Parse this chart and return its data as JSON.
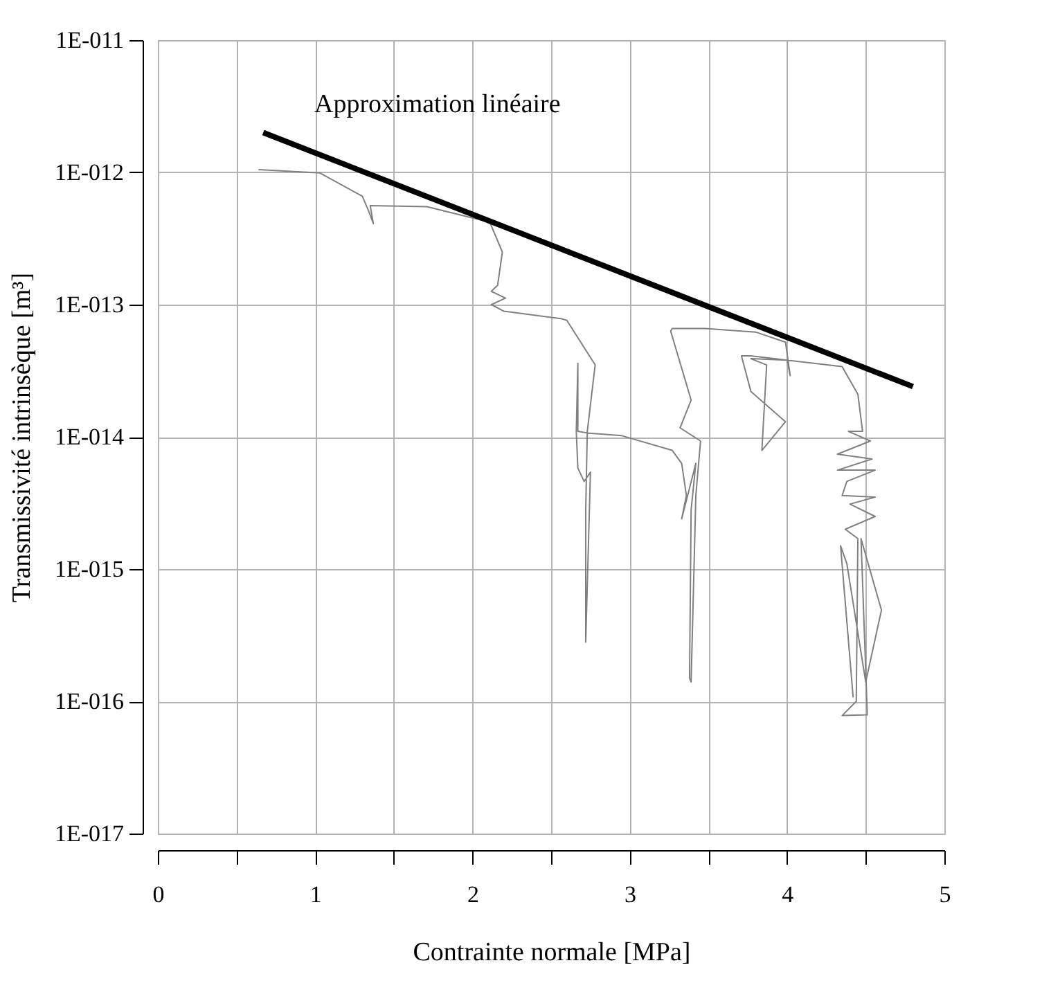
{
  "chart_data": {
    "type": "line",
    "xlabel": "Contrainte normale  [MPa]",
    "ylabel": "Transmissivité intrinsèque [m³]",
    "log": "y",
    "grid": true,
    "xlim": [
      0,
      5
    ],
    "ylim": [
      1e-17,
      1e-11
    ],
    "xticks": [
      0,
      {
        "value": 0.5,
        "label": null
      },
      1,
      {
        "value": 1.5,
        "label": null
      },
      2,
      {
        "value": 2.5,
        "label": null
      },
      3,
      {
        "value": 3.5,
        "label": null
      },
      4,
      {
        "value": 4.5,
        "label": null
      },
      5
    ],
    "yticks": [
      {
        "value": 1e-17,
        "label": "1E-017"
      },
      {
        "value": 1e-16,
        "label": "1E-016"
      },
      {
        "value": 1e-15,
        "label": "1E-015"
      },
      {
        "value": 1e-14,
        "label": "1E-014"
      },
      {
        "value": 1e-13,
        "label": "1E-013"
      },
      {
        "value": 1e-12,
        "label": "1E-012"
      },
      {
        "value": 1e-11,
        "label": "1E-011"
      }
    ],
    "annotations": [
      "Approximation linéaire"
    ],
    "series": [
      {
        "color": "#808080",
        "x": [
          0.64,
          1.03,
          1.3,
          1.34,
          1.37,
          1.35,
          1.71,
          2.11,
          2.19,
          2.16,
          2.12,
          2.21,
          2.12,
          2.2,
          2.21,
          2.57,
          2.6,
          2.78,
          2.73,
          2.72,
          2.72,
          2.75,
          2.71,
          2.67,
          2.66,
          2.67,
          2.67,
          2.73,
          2.95,
          3.27,
          3.33,
          3.36,
          3.33,
          3.42,
          3.39,
          3.38,
          3.39,
          3.42,
          3.45,
          3.32,
          3.39,
          3.26,
          3.27,
          3.48,
          3.8,
          3.99,
          4.02,
          4.0,
          3.77,
          3.71,
          3.77,
          3.99,
          3.84,
          3.87,
          3.77,
          4.0,
          4.35,
          4.45,
          4.48,
          4.39,
          4.53,
          4.32,
          4.54,
          4.32,
          4.56,
          4.38,
          4.35,
          4.56,
          4.4,
          4.56,
          4.37,
          4.45,
          4.44,
          4.35,
          4.51,
          4.47,
          4.6,
          4.5,
          4.38,
          4.34,
          4.42
        ],
        "values": [
          1.05e-12,
          9.9e-13,
          6.6e-13,
          5.1e-13,
          4.1e-13,
          5.6e-13,
          5.5e-13,
          4.2e-13,
          2.5e-13,
          1.4e-13,
          1.26e-13,
          1.12e-13,
          1e-13,
          8.9e-14,
          8.9e-14,
          7.8e-14,
          7.6e-14,
          3.5e-14,
          1.1e-14,
          2.8e-15,
          2.8e-16,
          5.4e-15,
          4.6e-15,
          5.8e-15,
          1.1e-14,
          3.6e-14,
          1.1e-14,
          1.07e-14,
          1.02e-14,
          7.9e-15,
          6.3e-15,
          3.6e-15,
          2.4e-15,
          6.3e-15,
          2.8e-15,
          1.5e-16,
          1.4e-16,
          3.6e-15,
          9.3e-15,
          1.17e-14,
          1.9e-14,
          6.3e-14,
          6.6e-14,
          6.6e-14,
          6.2e-14,
          5.2e-14,
          2.9e-14,
          3.8e-14,
          4.1e-14,
          4.1e-14,
          2.2e-14,
          1.3e-14,
          7.9e-15,
          3.5e-14,
          3.9e-14,
          3.8e-14,
          3.4e-14,
          2.1e-14,
          1.1e-14,
          1.1e-14,
          9.3e-15,
          7.4e-15,
          6.8e-15,
          5.6e-15,
          5.6e-15,
          4.6e-15,
          3.6e-15,
          3.5e-15,
          3.1e-15,
          2.5e-15,
          2e-15,
          1.7e-15,
          1e-16,
          7.8e-17,
          7.9e-17,
          1.7e-15,
          4.9e-16,
          1.4e-16,
          1.1e-15,
          1.5e-15,
          1.07e-16
        ]
      },
      {
        "type": "line",
        "color": "#000000",
        "x": [
          0.67,
          4.8
        ],
        "values": [
          2e-12,
          2.4e-14
        ]
      }
    ]
  }
}
